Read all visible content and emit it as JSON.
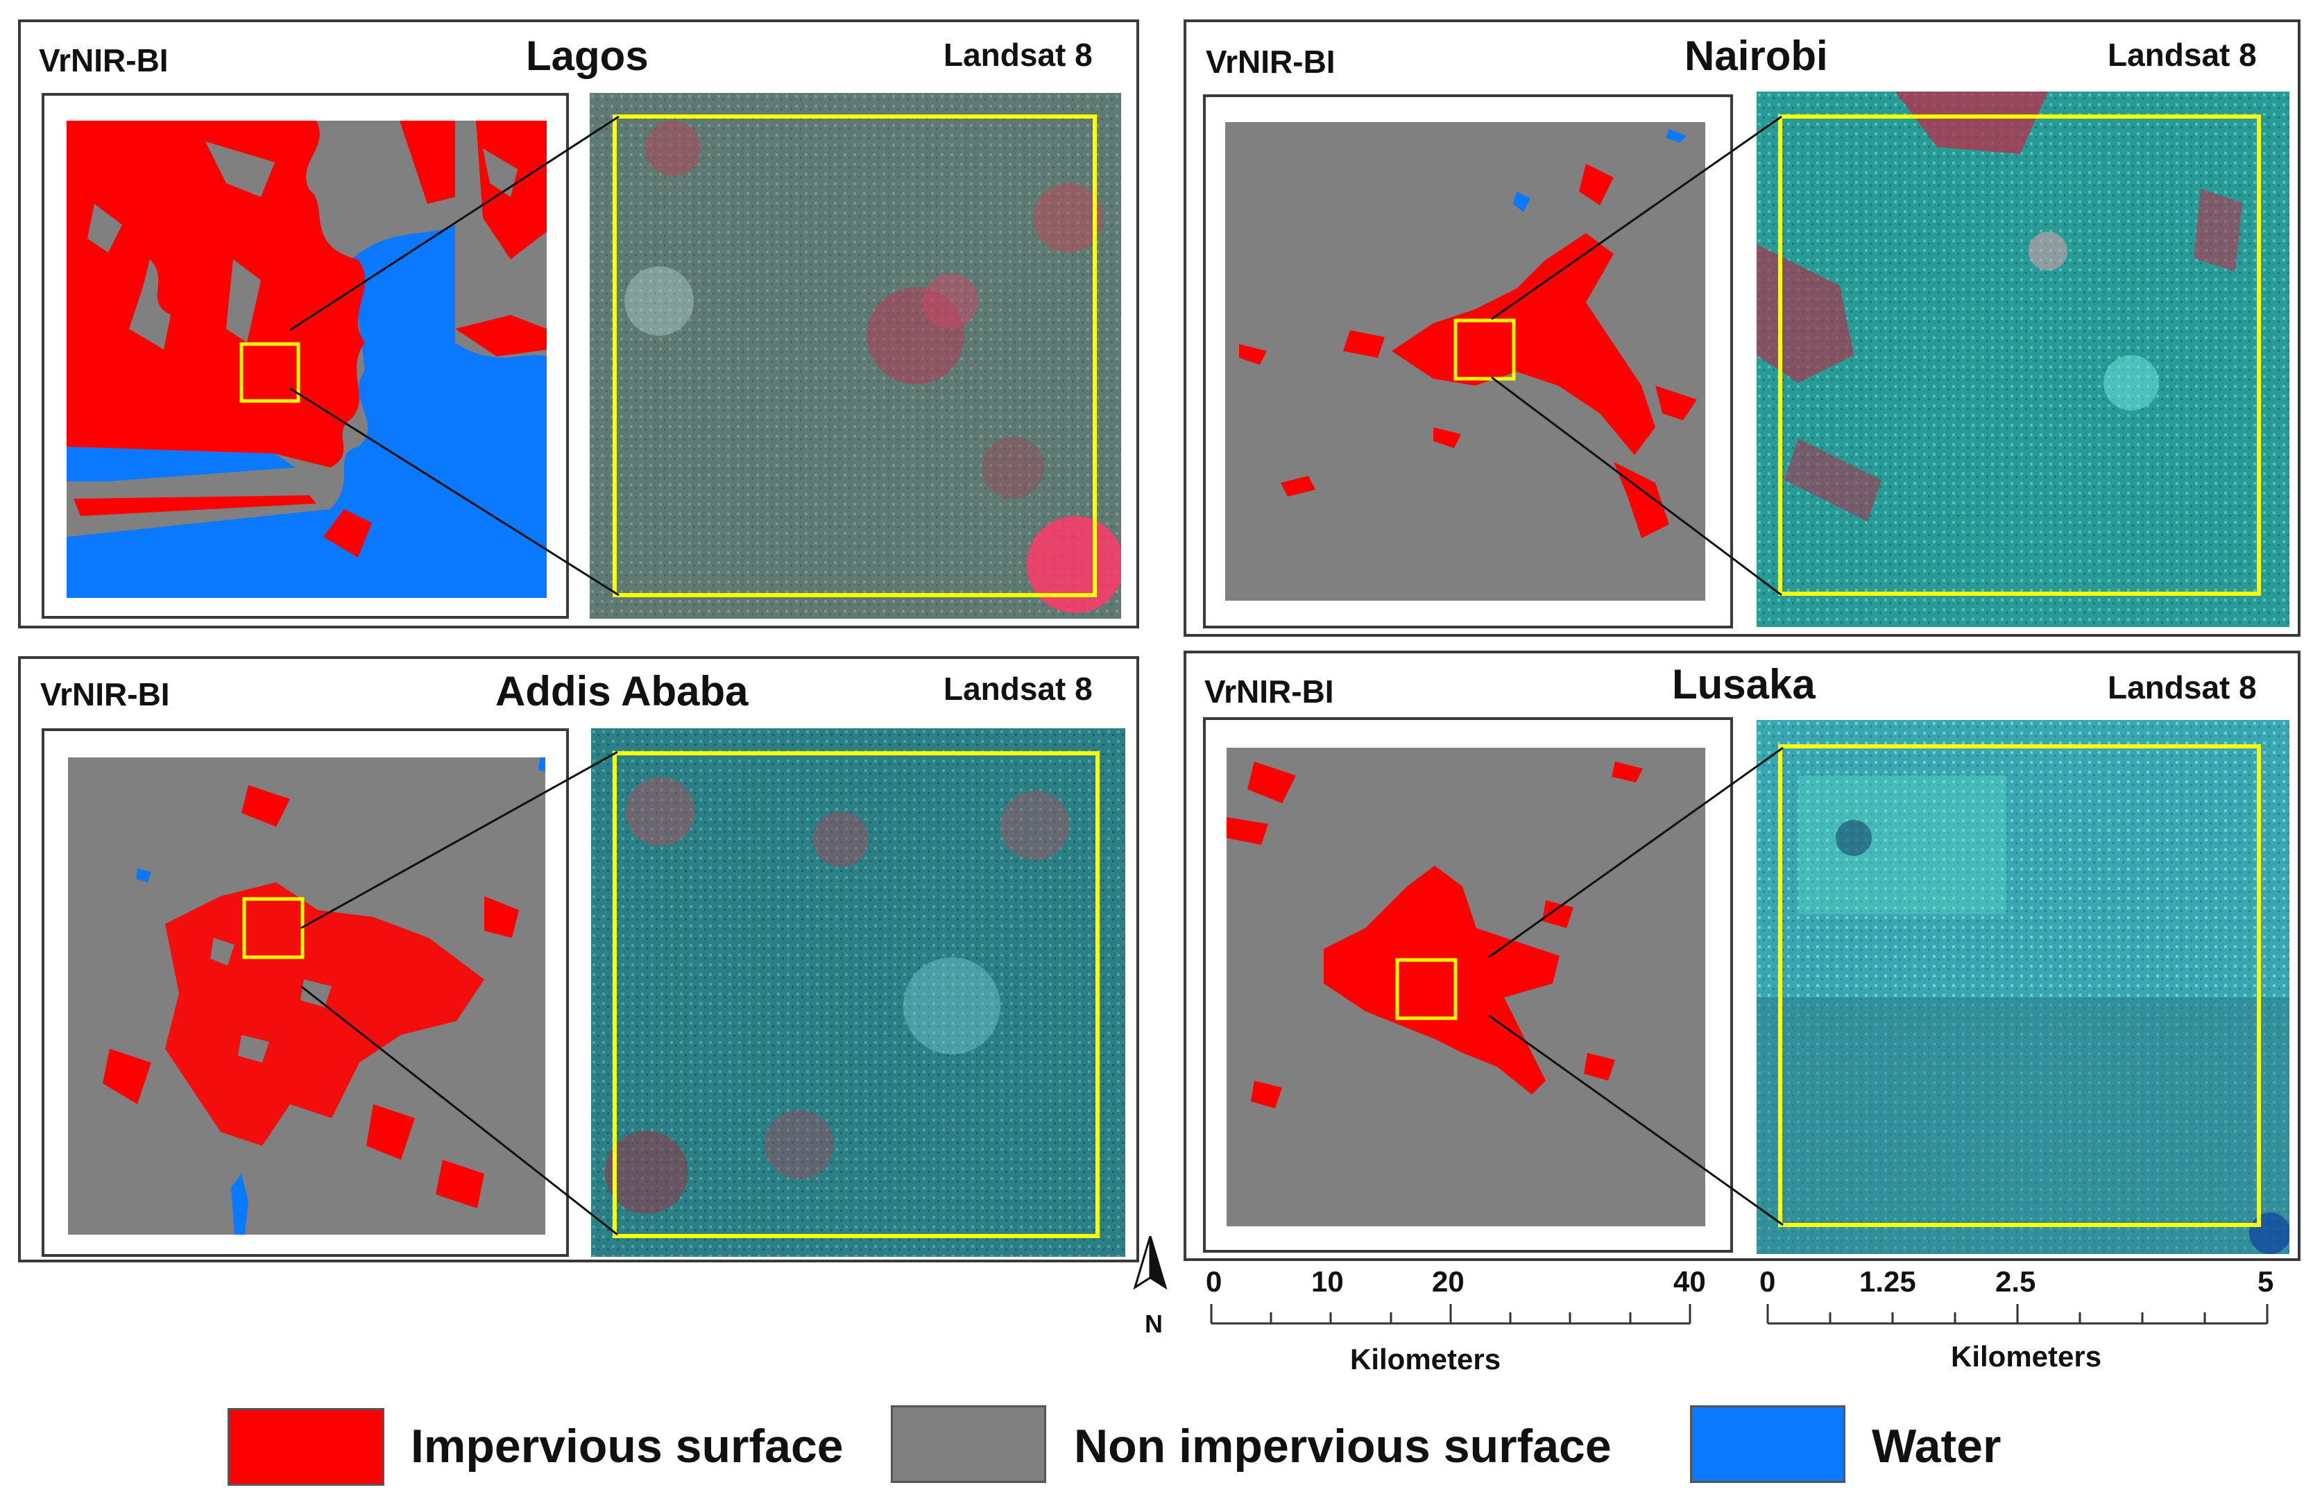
{
  "panels": [
    {
      "city": "Lagos",
      "index_label": "VrNIR-BI",
      "satellite_label": "Landsat 8"
    },
    {
      "city": "Nairobi",
      "index_label": "VrNIR-BI",
      "satellite_label": "Landsat 8"
    },
    {
      "city": "Addis Ababa",
      "index_label": "VrNIR-BI",
      "satellite_label": "Landsat 8"
    },
    {
      "city": "Lusaka",
      "index_label": "VrNIR-BI",
      "satellite_label": "Landsat 8"
    }
  ],
  "scale_km": {
    "ticks": [
      "0",
      "10",
      "20",
      "40"
    ],
    "unit": "Kilometers"
  },
  "scale_inset": {
    "ticks": [
      "0",
      "1.25",
      "2.5",
      "5"
    ],
    "unit": "Kilometers"
  },
  "north_arrow": {
    "label": "N"
  },
  "legend": {
    "items": [
      {
        "label": "Impervious surface",
        "color": "#ff0000"
      },
      {
        "label": "Non impervious surface",
        "color": "#808080"
      },
      {
        "label": "Water",
        "color": "#0a78ff"
      }
    ]
  },
  "colors": {
    "impervious": "#ff0000",
    "non_impervious": "#808080",
    "water": "#0a78ff",
    "zoom_box": "#ffff00"
  }
}
